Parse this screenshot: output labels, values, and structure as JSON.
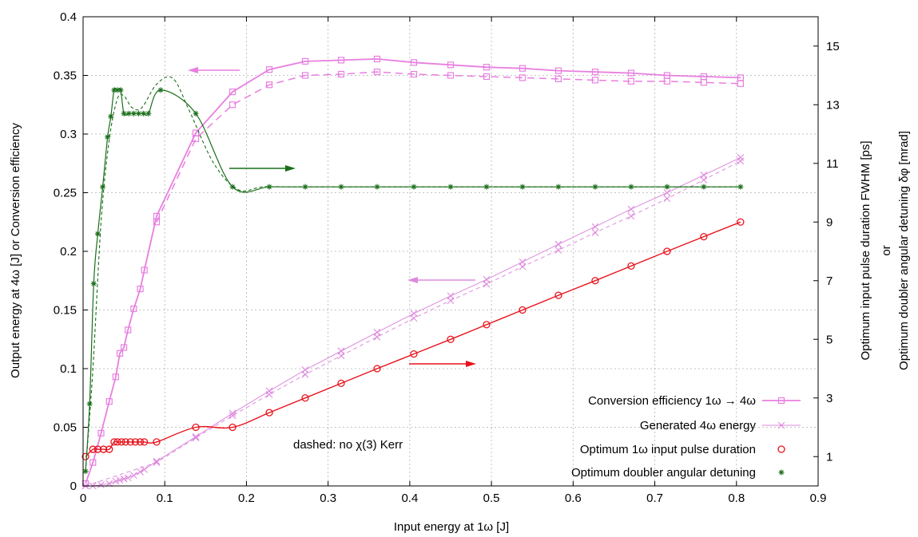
{
  "chart_data": {
    "type": "line",
    "xlabel": "Input energy at 1ω [J]",
    "ylabel_left": "Output energy at 4ω [J] or Conversion efficiency",
    "ylabel_right_1": "Optimum input pulse duration FWHM [ps]",
    "ylabel_right_2": "or",
    "ylabel_right_3": "Optimum doubler angular detuning δφ [mrad]",
    "xlim": [
      0,
      0.9
    ],
    "ylim_left": [
      0,
      0.4
    ],
    "ylim_right": [
      0,
      16
    ],
    "grid": true,
    "legend_position": "bottom-right",
    "x_ticks": [
      "0",
      "0.1",
      "0.2",
      "0.3",
      "0.4",
      "0.5",
      "0.6",
      "0.7",
      "0.8",
      "0.9"
    ],
    "y_left_ticks": [
      "0",
      "0.05",
      "0.1",
      "0.15",
      "0.2",
      "0.25",
      "0.3",
      "0.35",
      "0.4"
    ],
    "y_right_ticks": [
      "1",
      "3",
      "5",
      "7",
      "9",
      "11",
      "13",
      "15"
    ],
    "annotation": "dashed: no χ(3) Kerr",
    "colors": {
      "conversion": "#e87fe0",
      "energy": "#dd8add",
      "pulse": "#e8111a",
      "detuning": "#1a6e1a"
    },
    "series": [
      {
        "name": "Conversion efficiency 1ω → 4ω",
        "axis": "left",
        "marker": "square",
        "x": [
          0.003,
          0.012,
          0.022,
          0.032,
          0.04,
          0.045,
          0.05,
          0.055,
          0.062,
          0.07,
          0.075,
          0.09,
          0.138,
          0.183,
          0.228,
          0.272,
          0.316,
          0.36,
          0.405,
          0.45,
          0.494,
          0.538,
          0.582,
          0.627,
          0.671,
          0.715,
          0.76,
          0.805
        ],
        "values": [
          0.002,
          0.02,
          0.045,
          0.072,
          0.093,
          0.113,
          0.118,
          0.133,
          0.151,
          0.168,
          0.184,
          0.23,
          0.301,
          0.336,
          0.355,
          0.362,
          0.363,
          0.364,
          0.361,
          0.359,
          0.357,
          0.356,
          0.354,
          0.353,
          0.352,
          0.35,
          0.349,
          0.348
        ]
      },
      {
        "name": "Conversion efficiency 1ω → 4ω (no Kerr)",
        "axis": "left",
        "marker": "square",
        "x": [
          0.09,
          0.138,
          0.183,
          0.228,
          0.272,
          0.316,
          0.36,
          0.405,
          0.45,
          0.494,
          0.538,
          0.582,
          0.627,
          0.671,
          0.715,
          0.76,
          0.805
        ],
        "values": [
          0.225,
          0.296,
          0.325,
          0.342,
          0.35,
          0.351,
          0.353,
          0.351,
          0.35,
          0.349,
          0.348,
          0.347,
          0.346,
          0.345,
          0.345,
          0.344,
          0.343
        ]
      },
      {
        "name": "Generated 4ω energy",
        "axis": "left",
        "marker": "cross",
        "x": [
          0.003,
          0.012,
          0.022,
          0.032,
          0.04,
          0.045,
          0.05,
          0.055,
          0.062,
          0.07,
          0.075,
          0.09,
          0.138,
          0.183,
          0.228,
          0.272,
          0.316,
          0.36,
          0.405,
          0.45,
          0.494,
          0.538,
          0.582,
          0.627,
          0.671,
          0.715,
          0.76,
          0.805
        ],
        "values": [
          0.0,
          0.0,
          0.001,
          0.002,
          0.004,
          0.005,
          0.006,
          0.007,
          0.009,
          0.012,
          0.014,
          0.021,
          0.042,
          0.062,
          0.081,
          0.099,
          0.115,
          0.131,
          0.147,
          0.162,
          0.176,
          0.191,
          0.206,
          0.221,
          0.236,
          0.25,
          0.265,
          0.28
        ]
      },
      {
        "name": "Generated 4ω energy (no Kerr)",
        "axis": "left",
        "marker": "cross",
        "x": [
          0.003,
          0.09,
          0.138,
          0.183,
          0.228,
          0.272,
          0.316,
          0.36,
          0.405,
          0.45,
          0.494,
          0.538,
          0.582,
          0.627,
          0.671,
          0.715,
          0.76,
          0.805
        ],
        "values": [
          0.0,
          0.02,
          0.041,
          0.06,
          0.078,
          0.095,
          0.111,
          0.127,
          0.143,
          0.158,
          0.172,
          0.187,
          0.201,
          0.216,
          0.23,
          0.245,
          0.261,
          0.277
        ]
      },
      {
        "name": "Optimum 1ω input pulse duration",
        "axis": "right",
        "marker": "circle",
        "x": [
          0.003,
          0.012,
          0.018,
          0.025,
          0.032,
          0.038,
          0.042,
          0.047,
          0.052,
          0.058,
          0.064,
          0.07,
          0.075,
          0.09,
          0.138,
          0.183,
          0.228,
          0.272,
          0.316,
          0.36,
          0.405,
          0.45,
          0.494,
          0.538,
          0.582,
          0.627,
          0.671,
          0.715,
          0.76,
          0.805
        ],
        "values": [
          1.0,
          1.25,
          1.25,
          1.25,
          1.25,
          1.5,
          1.5,
          1.5,
          1.5,
          1.5,
          1.5,
          1.5,
          1.5,
          1.5,
          2.0,
          2.0,
          2.5,
          3.0,
          3.5,
          4.0,
          4.5,
          5.0,
          5.5,
          6.0,
          6.5,
          7.0,
          7.5,
          8.0,
          8.5,
          9.0
        ]
      },
      {
        "name": "Optimum doubler angular detuning",
        "axis": "right",
        "marker": "star",
        "x": [
          0.003,
          0.008,
          0.013,
          0.018,
          0.024,
          0.03,
          0.034,
          0.038,
          0.042,
          0.046,
          0.05,
          0.056,
          0.062,
          0.068,
          0.074,
          0.08,
          0.095,
          0.138,
          0.183,
          0.228,
          0.272,
          0.316,
          0.36,
          0.405,
          0.45,
          0.494,
          0.538,
          0.582,
          0.627,
          0.671,
          0.715,
          0.76,
          0.805
        ],
        "values": [
          0.5,
          2.8,
          6.9,
          8.6,
          10.2,
          11.9,
          12.6,
          13.5,
          13.5,
          13.5,
          12.7,
          12.7,
          12.7,
          12.7,
          12.7,
          12.7,
          13.5,
          12.7,
          10.2,
          10.2,
          10.2,
          10.2,
          10.2,
          10.2,
          10.2,
          10.2,
          10.2,
          10.2,
          10.2,
          10.2,
          10.2,
          10.2,
          10.2
        ]
      }
    ]
  }
}
